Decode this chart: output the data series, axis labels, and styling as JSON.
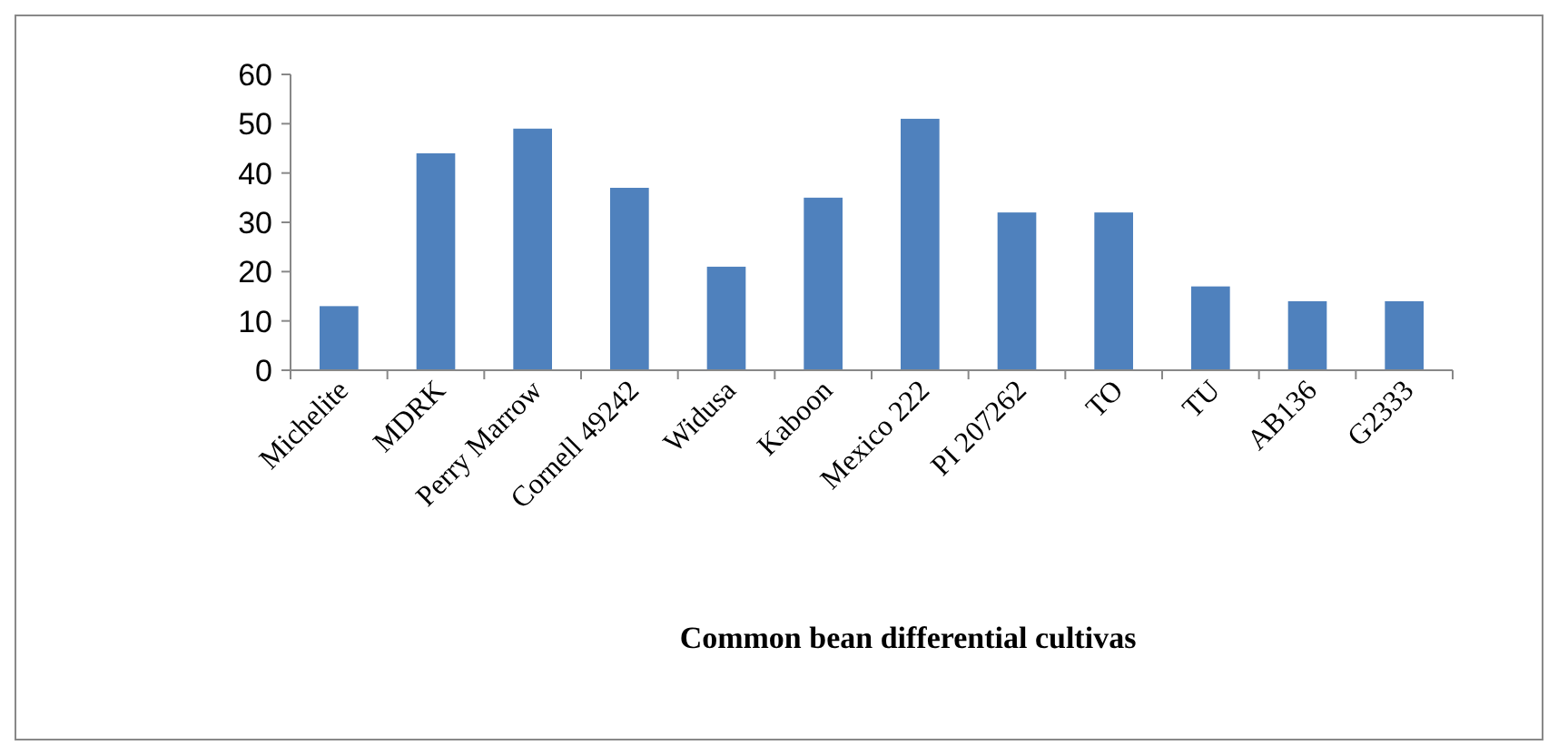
{
  "chart_data": {
    "type": "bar",
    "xlabel": "Common bean differential cultivas",
    "categories": [
      "Michelite",
      "MDRK",
      "Perry Marrow",
      "Cornell 49242",
      "Widusa",
      "Kaboon",
      "Mexico 222",
      "PI 207262",
      "TO",
      "TU",
      "AB136",
      "G2333"
    ],
    "values": [
      13,
      44,
      49,
      37,
      21,
      35,
      51,
      32,
      32,
      17,
      14,
      14
    ],
    "color": "#4f81bd",
    "ylim": [
      0,
      60
    ],
    "yticks": [
      0,
      10,
      20,
      30,
      40,
      50,
      60
    ],
    "grid": false
  }
}
